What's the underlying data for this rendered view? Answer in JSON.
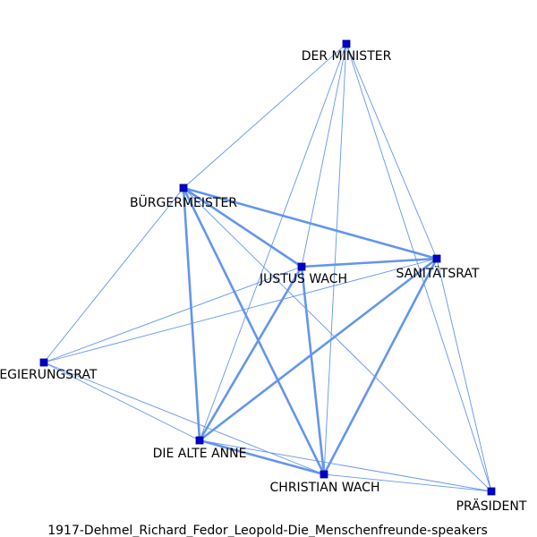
{
  "caption": "1917-Dehmel_Richard_Fedor_Leopold-Die_Menschenfreunde-speakers",
  "colors": {
    "edge": "#6495ed",
    "node_fill": "#0000cd",
    "node_stroke": "#000080",
    "text": "#000000"
  },
  "nodes": [
    {
      "id": "minister",
      "label": "DER MINISTER"
    },
    {
      "id": "buergermeister",
      "label": "BÜRGERMEISTER"
    },
    {
      "id": "justus",
      "label": "JUSTUS WACH"
    },
    {
      "id": "sanitaetsrat",
      "label": "SANITÄTSRAT"
    },
    {
      "id": "regierungsrat",
      "label": "REGIERUNGSRAT"
    },
    {
      "id": "anne",
      "label": "DIE ALTE ANNE"
    },
    {
      "id": "christian",
      "label": "CHRISTIAN WACH"
    },
    {
      "id": "praesident",
      "label": "PRÄSIDENT"
    }
  ],
  "edges": [
    {
      "source": "minister",
      "target": "buergermeister",
      "weight": 1
    },
    {
      "source": "minister",
      "target": "justus",
      "weight": 1
    },
    {
      "source": "minister",
      "target": "sanitaetsrat",
      "weight": 1
    },
    {
      "source": "minister",
      "target": "anne",
      "weight": 1
    },
    {
      "source": "minister",
      "target": "christian",
      "weight": 1
    },
    {
      "source": "minister",
      "target": "praesident",
      "weight": 1
    },
    {
      "source": "buergermeister",
      "target": "justus",
      "weight": 2
    },
    {
      "source": "buergermeister",
      "target": "sanitaetsrat",
      "weight": 2
    },
    {
      "source": "buergermeister",
      "target": "anne",
      "weight": 2
    },
    {
      "source": "buergermeister",
      "target": "christian",
      "weight": 2
    },
    {
      "source": "buergermeister",
      "target": "regierungsrat",
      "weight": 1
    },
    {
      "source": "buergermeister",
      "target": "praesident",
      "weight": 1
    },
    {
      "source": "justus",
      "target": "sanitaetsrat",
      "weight": 2
    },
    {
      "source": "justus",
      "target": "anne",
      "weight": 2
    },
    {
      "source": "justus",
      "target": "christian",
      "weight": 2
    },
    {
      "source": "justus",
      "target": "regierungsrat",
      "weight": 1
    },
    {
      "source": "sanitaetsrat",
      "target": "anne",
      "weight": 2
    },
    {
      "source": "sanitaetsrat",
      "target": "christian",
      "weight": 2
    },
    {
      "source": "sanitaetsrat",
      "target": "regierungsrat",
      "weight": 1
    },
    {
      "source": "sanitaetsrat",
      "target": "praesident",
      "weight": 1
    },
    {
      "source": "anne",
      "target": "christian",
      "weight": 2
    },
    {
      "source": "anne",
      "target": "praesident",
      "weight": 1
    },
    {
      "source": "regierungsrat",
      "target": "anne",
      "weight": 1
    },
    {
      "source": "regierungsrat",
      "target": "christian",
      "weight": 1
    },
    {
      "source": "christian",
      "target": "praesident",
      "weight": 1
    }
  ]
}
